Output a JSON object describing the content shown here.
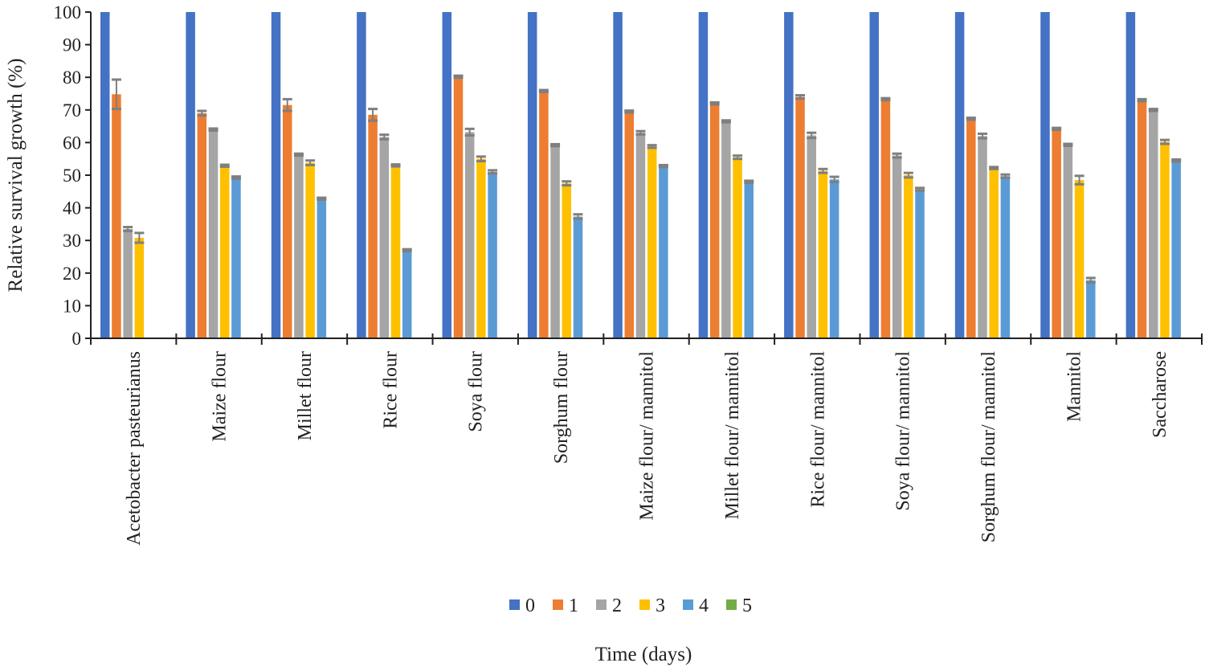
{
  "chart_data": {
    "type": "bar",
    "title": "",
    "xlabel": "Time (days)",
    "ylabel": "Relative survival growth (%)",
    "ylim": [
      0,
      100
    ],
    "yticks": [
      0,
      10,
      20,
      30,
      40,
      50,
      60,
      70,
      80,
      90,
      100
    ],
    "legend_position": "bottom",
    "grid": false,
    "categories": [
      "Acetobacter pasteurianus",
      "Maize flour",
      "Millet flour",
      "Rice flour",
      "Soya flour",
      "Sorghum flour",
      "Maize flour/ mannitol",
      "Millet flour/ mannitol",
      "Rice flour/ mannitol",
      "Soya flour/ mannitol",
      "Sorghum flour/ mannitol",
      "Mannitol",
      "Saccharose"
    ],
    "series": [
      {
        "name": "0",
        "color": "#4472C4",
        "values": [
          100,
          100,
          100,
          100,
          100,
          100,
          100,
          100,
          100,
          100,
          100,
          100,
          100
        ],
        "errors": [
          0,
          0,
          0,
          0,
          0,
          0,
          0,
          0,
          0,
          0,
          0,
          0,
          0
        ]
      },
      {
        "name": "1",
        "color": "#ED7D31",
        "values": [
          74.8,
          69,
          71.5,
          68.5,
          80.2,
          75.8,
          69.5,
          72,
          74,
          73.3,
          67.3,
          64.2,
          73
        ],
        "errors": [
          4.5,
          0.7,
          1.8,
          1.8,
          0.3,
          0.3,
          0.3,
          0.3,
          0.5,
          0.3,
          0.3,
          0.3,
          0.3
        ]
      },
      {
        "name": "2",
        "color": "#A5A5A5",
        "values": [
          33.5,
          64,
          56.3,
          61.7,
          63.2,
          59.2,
          63,
          66.5,
          62.2,
          56,
          62,
          59.3,
          70
        ],
        "errors": [
          0.6,
          0.3,
          0.3,
          0.7,
          1,
          0.3,
          0.5,
          0.3,
          0.8,
          0.6,
          0.7,
          0.3,
          0.3
        ]
      },
      {
        "name": "3",
        "color": "#FFC000",
        "values": [
          30.8,
          52.9,
          53.8,
          53,
          55,
          47.5,
          58.8,
          55.5,
          51.3,
          50,
          52.2,
          48.5,
          60.2
        ],
        "errors": [
          1.5,
          0.3,
          0.7,
          0.3,
          0.7,
          0.6,
          0.4,
          0.5,
          0.6,
          0.7,
          0.3,
          1.3,
          0.6
        ]
      },
      {
        "name": "4",
        "color": "#5B9BD5",
        "values": [
          0,
          49.3,
          42.8,
          27,
          51,
          37.3,
          52.8,
          48,
          48.7,
          45.7,
          49.7,
          17.8,
          54.5
        ],
        "errors": [
          0,
          0.3,
          0.3,
          0.3,
          0.5,
          0.7,
          0.3,
          0.3,
          0.8,
          0.4,
          0.5,
          0.7,
          0.3
        ]
      },
      {
        "name": "5",
        "color": "#70AD47",
        "values": [
          0,
          0,
          0,
          0,
          0,
          0,
          0,
          0,
          0,
          0,
          0,
          0,
          0
        ],
        "errors": [
          0,
          0,
          0,
          0,
          0,
          0,
          0,
          0,
          0,
          0,
          0,
          0,
          0
        ]
      }
    ]
  }
}
